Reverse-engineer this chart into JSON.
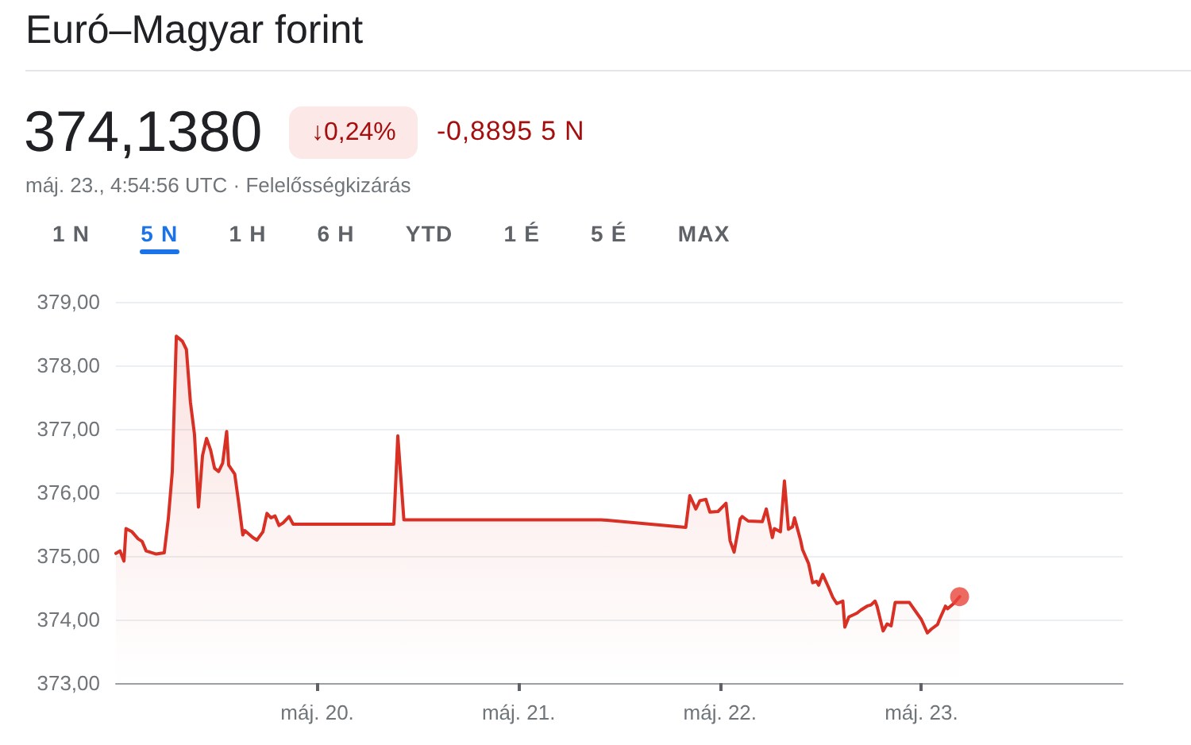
{
  "chart_data": {
    "type": "area",
    "title": "Euró–Magyar forint",
    "subtitle": "máj. 23., 4:54:56 UTC · Felelősségkizárás",
    "annotations": [
      "374,1380",
      "↓0,24%",
      "-0,8895 5 N",
      "1 N",
      "5 N",
      "1 H",
      "6 H",
      "YTD",
      "1 É",
      "5 É",
      "MAX"
    ],
    "x": [
      19.0,
      19.02,
      19.04,
      19.05,
      19.08,
      19.11,
      19.13,
      19.15,
      19.2,
      19.24,
      19.26,
      19.28,
      19.3,
      19.33,
      19.35,
      19.37,
      19.39,
      19.41,
      19.43,
      19.45,
      19.47,
      19.49,
      19.51,
      19.53,
      19.55,
      19.56,
      19.59,
      19.61,
      19.63,
      19.64,
      19.68,
      19.7,
      19.73,
      19.75,
      19.77,
      19.79,
      19.81,
      19.83,
      19.86,
      19.88,
      20.38,
      20.4,
      20.43,
      21.41,
      21.83,
      21.85,
      21.88,
      21.9,
      21.93,
      21.95,
      21.99,
      22.03,
      22.05,
      22.07,
      22.1,
      22.11,
      22.14,
      22.21,
      22.23,
      22.26,
      22.27,
      22.3,
      22.32,
      22.34,
      22.36,
      22.37,
      22.4,
      22.41,
      22.44,
      22.46,
      22.48,
      22.49,
      22.51,
      22.54,
      22.56,
      22.58,
      22.61,
      22.62,
      22.64,
      22.68,
      22.7,
      22.73,
      22.75,
      22.77,
      22.78,
      22.81,
      22.83,
      22.85,
      22.87,
      22.94,
      23.0,
      23.03,
      23.05,
      23.08,
      23.09,
      23.12,
      23.13,
      23.16,
      23.19
    ],
    "series": [
      {
        "color": "#d93025",
        "marker": "none",
        "values": [
          375.04,
          375.08,
          374.92,
          375.43,
          375.38,
          375.27,
          375.23,
          375.08,
          375.03,
          375.05,
          375.58,
          376.33,
          378.46,
          378.38,
          378.25,
          377.42,
          376.92,
          375.77,
          376.58,
          376.85,
          376.67,
          376.38,
          376.33,
          376.46,
          376.96,
          376.43,
          376.29,
          375.83,
          375.33,
          375.4,
          375.29,
          375.25,
          375.38,
          375.67,
          375.6,
          375.63,
          375.48,
          375.52,
          375.62,
          375.5,
          375.5,
          376.89,
          375.57,
          375.57,
          375.45,
          375.95,
          375.74,
          375.87,
          375.89,
          375.69,
          375.7,
          375.83,
          375.24,
          375.06,
          375.58,
          375.62,
          375.55,
          375.54,
          375.74,
          375.29,
          375.43,
          375.38,
          376.18,
          375.42,
          375.46,
          375.6,
          375.25,
          375.1,
          374.88,
          374.58,
          374.6,
          374.54,
          374.71,
          374.5,
          374.35,
          374.25,
          374.29,
          373.88,
          374.04,
          374.1,
          374.15,
          374.21,
          374.23,
          374.29,
          374.21,
          373.82,
          373.93,
          373.9,
          374.27,
          374.27,
          374.0,
          373.79,
          373.85,
          373.92,
          374.0,
          374.21,
          374.17,
          374.25,
          374.36
        ]
      },
      {
        "type": "scatter",
        "color": "#e8453c",
        "marker": "circle",
        "x": [
          23.19
        ],
        "values": [
          374.36
        ]
      }
    ],
    "xlim": [
      19,
      24
    ],
    "xticks": [
      {
        "value": 20,
        "label": "máj. 20."
      },
      {
        "value": 21,
        "label": "máj. 21."
      },
      {
        "value": 22,
        "label": "máj. 22."
      },
      {
        "value": 23,
        "label": "máj. 23."
      }
    ],
    "ylim": [
      373,
      379
    ],
    "yticks": [
      {
        "value": 373,
        "label": "373,00"
      },
      {
        "value": 374,
        "label": "374,00"
      },
      {
        "value": 375,
        "label": "375,00"
      },
      {
        "value": 376,
        "label": "376,00"
      },
      {
        "value": 377,
        "label": "377,00"
      },
      {
        "value": 378,
        "label": "378,00"
      },
      {
        "value": 379,
        "label": "379,00"
      }
    ],
    "grid": "y"
  }
}
